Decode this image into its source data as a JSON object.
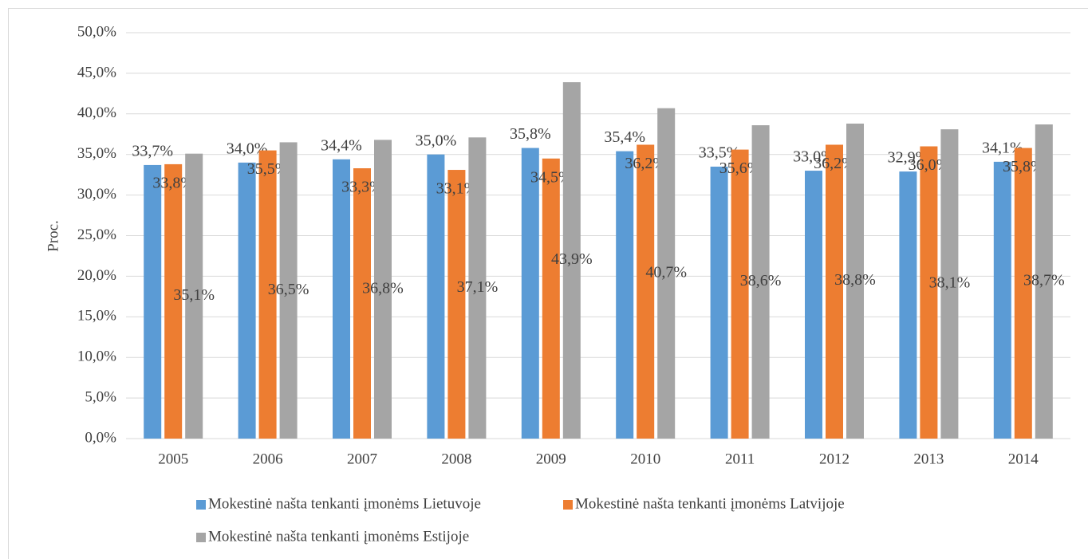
{
  "chart_data": {
    "type": "bar",
    "ylabel": "Proc.",
    "categories": [
      "2005",
      "2006",
      "2007",
      "2008",
      "2009",
      "2010",
      "2011",
      "2012",
      "2013",
      "2014"
    ],
    "series": [
      {
        "name": "Mokestinė našta tenkanti įmonėms Lietuvoje",
        "color": "#5b9bd5",
        "values": [
          33.7,
          34.0,
          34.4,
          35.0,
          35.8,
          35.4,
          33.5,
          33.0,
          32.9,
          34.1
        ],
        "value_labels": [
          "33,7%",
          "34,0%",
          "34,4%",
          "35,0%",
          "35,8%",
          "35,4%",
          "33,5%",
          "33,0%",
          "32,9%",
          "34,1%"
        ]
      },
      {
        "name": "Mokestinė našta tenkanti įmonėms Latvijoje",
        "color": "#ed7d31",
        "values": [
          33.8,
          35.5,
          33.3,
          33.1,
          34.5,
          36.2,
          35.6,
          36.2,
          36.0,
          35.8
        ],
        "value_labels": [
          "33,8%",
          "35,5%",
          "33,3%",
          "33,1%",
          "34,5%",
          "36,2%",
          "35,6%",
          "36,2%",
          "36,0%",
          "35,8%"
        ]
      },
      {
        "name": "Mokestinė našta tenkanti įmonėms Estijoje",
        "color": "#a5a5a5",
        "values": [
          35.1,
          36.5,
          36.8,
          37.1,
          43.9,
          40.7,
          38.6,
          38.8,
          38.1,
          38.7
        ],
        "value_labels": [
          "35,1%",
          "36,5%",
          "36,8%",
          "37,1%",
          "43,9%",
          "40,7%",
          "38,6%",
          "38,8%",
          "38,1%",
          "38,7%"
        ]
      }
    ],
    "ylim": [
      0,
      50
    ],
    "yticks": [
      {
        "value": 0,
        "label": "0,0%"
      },
      {
        "value": 5,
        "label": "5,0%"
      },
      {
        "value": 10,
        "label": "10,0%"
      },
      {
        "value": 15,
        "label": "15,0%"
      },
      {
        "value": 20,
        "label": "20,0%"
      },
      {
        "value": 25,
        "label": "25,0%"
      },
      {
        "value": 30,
        "label": "30,0%"
      },
      {
        "value": 35,
        "label": "35,0%"
      },
      {
        "value": 40,
        "label": "40,0%"
      },
      {
        "value": 45,
        "label": "45,0%"
      },
      {
        "value": 50,
        "label": "50,0%"
      }
    ],
    "grid": true
  }
}
